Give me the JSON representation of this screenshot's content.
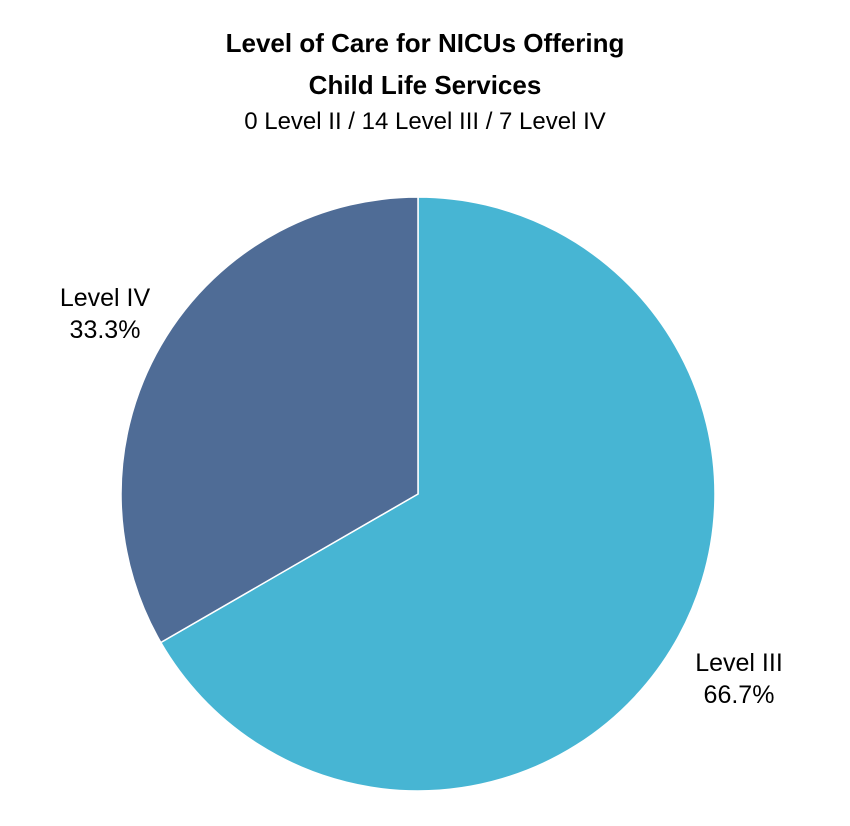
{
  "chart_data": {
    "type": "pie",
    "title_lines": [
      "Level of Care for NICUs Offering",
      "Child Life Services"
    ],
    "subtitle": "0 Level II / 14 Level III / 7 Level IV",
    "slices": [
      {
        "name": "Level III",
        "value": 14,
        "percent_label": "66.7%",
        "color": "#47B5D3"
      },
      {
        "name": "Level IV",
        "value": 7,
        "percent_label": "33.3%",
        "color": "#4F6C96"
      }
    ],
    "start_angle_deg": 0,
    "direction": "clockwise",
    "legend": "none"
  }
}
